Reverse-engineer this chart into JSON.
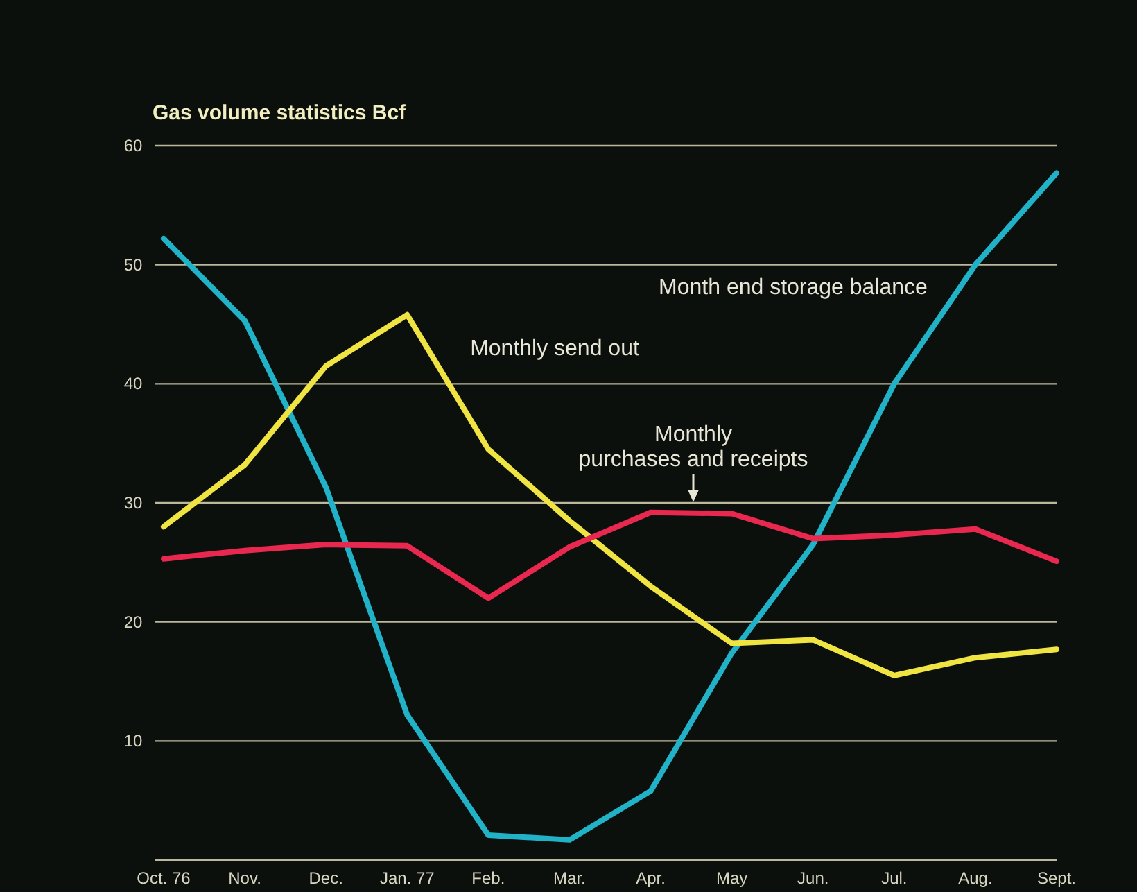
{
  "chart_data": {
    "type": "line",
    "title": "Gas volume statistics  Bcf",
    "categories": [
      "Oct. 76",
      "Nov.",
      "Dec.",
      "Jan. 77",
      "Feb.",
      "Mar.",
      "Apr.",
      "May",
      "Jun.",
      "Jul.",
      "Aug.",
      "Sept."
    ],
    "series": [
      {
        "color": "#22b2c8",
        "values": [
          52.2,
          45.3,
          31.3,
          12.2,
          2.1,
          1.7,
          5.8,
          17.4,
          26.5,
          40,
          50,
          57.7
        ]
      },
      {
        "color": "#f0e442",
        "values": [
          28,
          33.2,
          41.5,
          45.8,
          34.5,
          28.5,
          23,
          18.2,
          18.5,
          15.5,
          17,
          17.7
        ]
      },
      {
        "color": "#e8284e",
        "values": [
          25.3,
          26,
          26.5,
          26.4,
          22,
          26.3,
          29.2,
          29.1,
          27,
          27.3,
          27.8,
          25.1
        ]
      }
    ],
    "annotations": [
      "Month end storage balance",
      "Monthly send out",
      "Monthly\npurchases and receipts"
    ],
    "ylim": [
      0,
      60
    ],
    "yticks": [
      {
        "value": 0,
        "label": null
      },
      10,
      20,
      30,
      40,
      50,
      60
    ],
    "grid": "y",
    "marker": "none",
    "line_style": "solid"
  }
}
